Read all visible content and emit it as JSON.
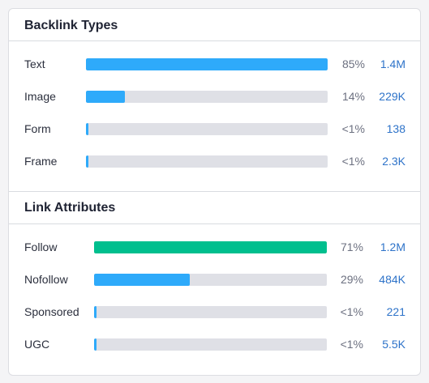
{
  "backlink_types": {
    "title": "Backlink Types",
    "rows": [
      {
        "label": "Text",
        "percent": "85%",
        "count": "1.4M",
        "fill": 1.0,
        "color": "#2eaafa"
      },
      {
        "label": "Image",
        "percent": "14%",
        "count": "229K",
        "fill": 0.16,
        "color": "#2eaafa"
      },
      {
        "label": "Form",
        "percent": "<1%",
        "count": "138",
        "fill": 0.008,
        "color": "#2eaafa"
      },
      {
        "label": "Frame",
        "percent": "<1%",
        "count": "2.3K",
        "fill": 0.008,
        "color": "#2eaafa"
      }
    ]
  },
  "link_attributes": {
    "title": "Link Attributes",
    "rows": [
      {
        "label": "Follow",
        "percent": "71%",
        "count": "1.2M",
        "fill": 1.0,
        "color": "#00bf8e"
      },
      {
        "label": "Nofollow",
        "percent": "29%",
        "count": "484K",
        "fill": 0.41,
        "color": "#2eaafa"
      },
      {
        "label": "Sponsored",
        "percent": "<1%",
        "count": "221",
        "fill": 0.008,
        "color": "#2eaafa"
      },
      {
        "label": "UGC",
        "percent": "<1%",
        "count": "5.5K",
        "fill": 0.008,
        "color": "#2eaafa"
      }
    ]
  }
}
